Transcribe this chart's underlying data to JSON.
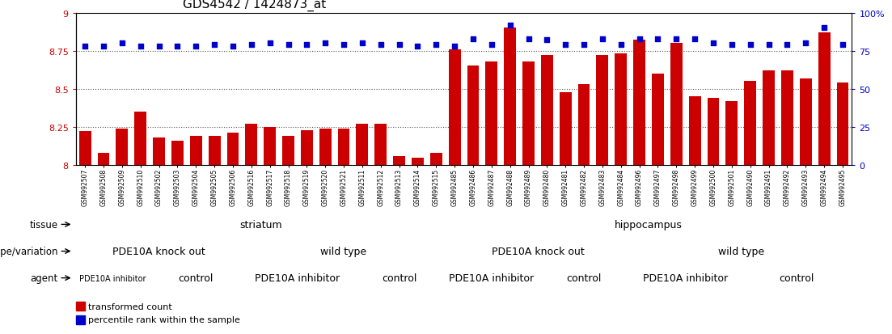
{
  "title": "GDS4542 / 1424873_at",
  "samples": [
    "GSM992507",
    "GSM992508",
    "GSM992509",
    "GSM992510",
    "GSM992502",
    "GSM992503",
    "GSM992504",
    "GSM992505",
    "GSM992506",
    "GSM992516",
    "GSM992517",
    "GSM992518",
    "GSM992519",
    "GSM992520",
    "GSM992521",
    "GSM992511",
    "GSM992512",
    "GSM992513",
    "GSM992514",
    "GSM992515",
    "GSM992485",
    "GSM992486",
    "GSM992487",
    "GSM992488",
    "GSM992489",
    "GSM992480",
    "GSM992481",
    "GSM992482",
    "GSM992483",
    "GSM992484",
    "GSM992496",
    "GSM992497",
    "GSM992498",
    "GSM992499",
    "GSM992500",
    "GSM992501",
    "GSM992490",
    "GSM992491",
    "GSM992492",
    "GSM992493",
    "GSM992494",
    "GSM992495"
  ],
  "bar_values": [
    8.22,
    8.08,
    8.24,
    8.35,
    8.18,
    8.16,
    8.19,
    8.19,
    8.21,
    8.27,
    8.25,
    8.19,
    8.23,
    8.24,
    8.24,
    8.27,
    8.27,
    8.06,
    8.05,
    8.08,
    8.76,
    8.65,
    8.68,
    8.9,
    8.68,
    8.72,
    8.48,
    8.53,
    8.72,
    8.73,
    8.82,
    8.6,
    8.8,
    8.45,
    8.44,
    8.42,
    8.55,
    8.62,
    8.62,
    8.57,
    8.87,
    8.54
  ],
  "percentile_values": [
    78,
    78,
    80,
    78,
    78,
    78,
    78,
    79,
    78,
    79,
    80,
    79,
    79,
    80,
    79,
    80,
    79,
    79,
    78,
    79,
    78,
    83,
    79,
    92,
    83,
    82,
    79,
    79,
    83,
    79,
    83,
    83,
    83,
    83,
    80,
    79,
    79,
    79,
    79,
    80,
    90,
    79
  ],
  "ylim_min": 8.0,
  "ylim_max": 9.0,
  "yticks": [
    8.0,
    8.25,
    8.5,
    8.75,
    9.0
  ],
  "ytick_labels": [
    "8",
    "8.25",
    "8.5",
    "8.75",
    "9"
  ],
  "y2lim_min": 0,
  "y2lim_max": 100,
  "y2ticks": [
    0,
    25,
    50,
    75,
    100
  ],
  "y2tick_labels": [
    "0",
    "25",
    "50",
    "75",
    "100%"
  ],
  "hlines": [
    8.25,
    8.5,
    8.75
  ],
  "bar_color": "#cc0000",
  "marker_color": "#0000cc",
  "tissue_groups": [
    {
      "label": "striatum",
      "start": 0,
      "end": 19,
      "color": "#b8e8b0"
    },
    {
      "label": "hippocampus",
      "start": 20,
      "end": 41,
      "color": "#55cc55"
    }
  ],
  "genotype_groups": [
    {
      "label": "PDE10A knock out",
      "start": 0,
      "end": 8,
      "color": "#c0c0ee"
    },
    {
      "label": "wild type",
      "start": 9,
      "end": 19,
      "color": "#9898dd"
    },
    {
      "label": "PDE10A knock out",
      "start": 20,
      "end": 29,
      "color": "#c0c0ee"
    },
    {
      "label": "wild type",
      "start": 30,
      "end": 41,
      "color": "#9898dd"
    }
  ],
  "agent_groups": [
    {
      "label": "PDE10A inhibitor",
      "start": 0,
      "end": 3,
      "color": "#ee9999"
    },
    {
      "label": "control",
      "start": 4,
      "end": 8,
      "color": "#dd7777"
    },
    {
      "label": "PDE10A inhibitor",
      "start": 9,
      "end": 14,
      "color": "#ee9999"
    },
    {
      "label": "control",
      "start": 15,
      "end": 19,
      "color": "#dd7777"
    },
    {
      "label": "PDE10A inhibitor",
      "start": 20,
      "end": 24,
      "color": "#ee9999"
    },
    {
      "label": "control",
      "start": 25,
      "end": 29,
      "color": "#dd7777"
    },
    {
      "label": "PDE10A inhibitor",
      "start": 30,
      "end": 35,
      "color": "#ee9999"
    },
    {
      "label": "control",
      "start": 36,
      "end": 41,
      "color": "#dd7777"
    }
  ],
  "row_labels": [
    "tissue",
    "genotype/variation",
    "agent"
  ],
  "bar_width": 0.65,
  "background_color": "#ffffff",
  "tick_color_left": "#cc0000",
  "tick_color_right": "#0000cc"
}
